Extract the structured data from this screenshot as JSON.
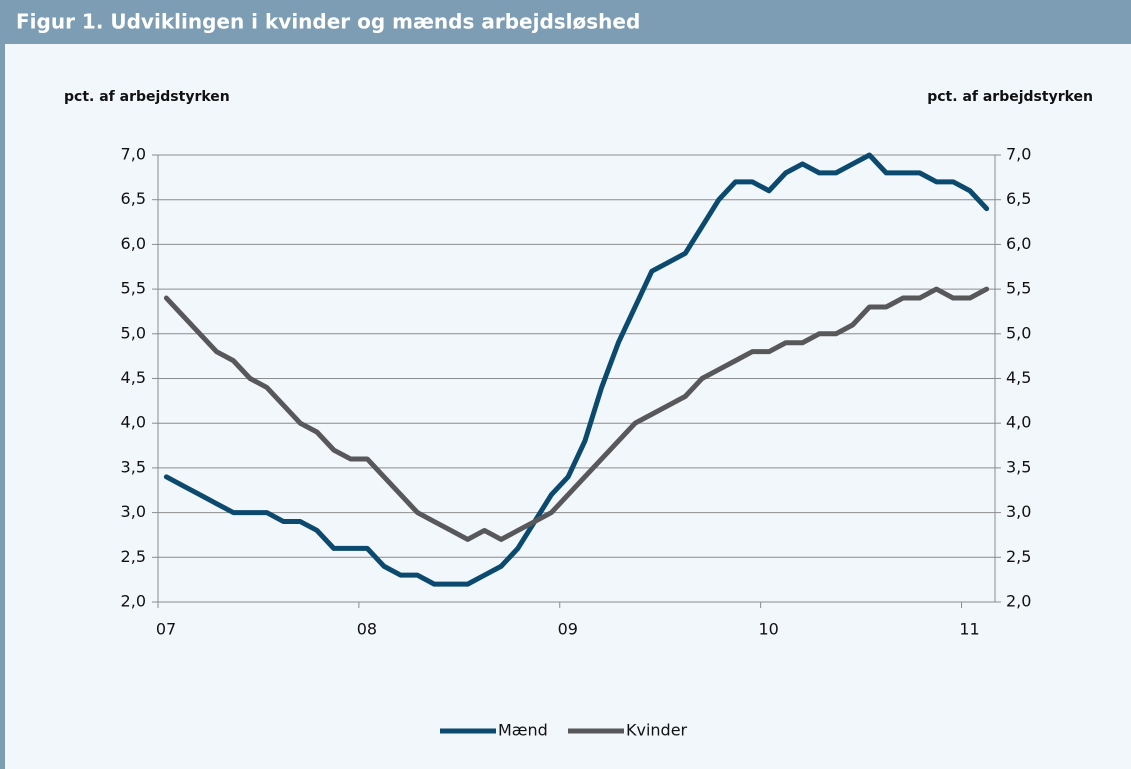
{
  "chart_data": {
    "type": "line",
    "title": "Figur 1. Udviklingen i kvinder og mænds arbejdsløshed",
    "ylabel": "pct. af arbejdstyrken",
    "y2label": "pct. af arbejdstyrken",
    "categories": [
      "07",
      null,
      null,
      null,
      null,
      null,
      null,
      null,
      null,
      null,
      null,
      null,
      "08",
      null,
      null,
      null,
      null,
      null,
      null,
      null,
      null,
      null,
      null,
      null,
      "09",
      null,
      null,
      null,
      null,
      null,
      null,
      null,
      null,
      null,
      null,
      null,
      "10",
      null,
      null,
      null,
      null,
      null,
      null,
      null,
      null,
      null,
      null,
      null,
      "11",
      null
    ],
    "series": [
      {
        "name": "Mænd",
        "color": "#0b4a6e",
        "values": [
          3.4,
          3.3,
          3.2,
          3.1,
          3.0,
          3.0,
          3.0,
          2.9,
          2.9,
          2.8,
          2.6,
          2.6,
          2.6,
          2.4,
          2.3,
          2.3,
          2.2,
          2.2,
          2.2,
          2.3,
          2.4,
          2.6,
          2.9,
          3.2,
          3.4,
          3.8,
          4.4,
          4.9,
          5.3,
          5.7,
          5.8,
          5.9,
          6.2,
          6.5,
          6.7,
          6.7,
          6.6,
          6.8,
          6.9,
          6.8,
          6.8,
          6.9,
          7.0,
          6.8,
          6.8,
          6.8,
          6.7,
          6.7,
          6.6,
          6.4
        ]
      },
      {
        "name": "Kvinder",
        "color": "#58585a",
        "values": [
          5.4,
          5.2,
          5.0,
          4.8,
          4.7,
          4.5,
          4.4,
          4.2,
          4.0,
          3.9,
          3.7,
          3.6,
          3.6,
          3.4,
          3.2,
          3.0,
          2.9,
          2.8,
          2.7,
          2.8,
          2.7,
          2.8,
          2.9,
          3.0,
          3.2,
          3.4,
          3.6,
          3.8,
          4.0,
          4.1,
          4.2,
          4.3,
          4.5,
          4.6,
          4.7,
          4.8,
          4.8,
          4.9,
          4.9,
          5.0,
          5.0,
          5.1,
          5.3,
          5.3,
          5.4,
          5.4,
          5.5,
          5.4,
          5.4,
          5.5
        ]
      }
    ],
    "ylim": [
      2,
      7
    ],
    "yticks": [
      {
        "value": 2,
        "label": "2,0"
      },
      {
        "value": 2.5,
        "label": "2,5"
      },
      {
        "value": 3,
        "label": "3,0"
      },
      {
        "value": 3.5,
        "label": "3,5"
      },
      {
        "value": 4,
        "label": "4,0"
      },
      {
        "value": 4.5,
        "label": "4,5"
      },
      {
        "value": 5,
        "label": "5,0"
      },
      {
        "value": 5.5,
        "label": "5,5"
      },
      {
        "value": 6,
        "label": "6,0"
      },
      {
        "value": 6.5,
        "label": "6,5"
      },
      {
        "value": 7,
        "label": "7,0"
      }
    ],
    "y2lim": [
      2,
      7
    ],
    "y2ticks": [
      {
        "value": 2,
        "label": "2,0"
      },
      {
        "value": 2.5,
        "label": "2,5"
      },
      {
        "value": 3,
        "label": "3,0"
      },
      {
        "value": 3.5,
        "label": "3,5"
      },
      {
        "value": 4,
        "label": "4,0"
      },
      {
        "value": 4.5,
        "label": "4,5"
      },
      {
        "value": 5,
        "label": "5,0"
      },
      {
        "value": 5.5,
        "label": "5,5"
      },
      {
        "value": 6,
        "label": "6,0"
      },
      {
        "value": 6.5,
        "label": "6,5"
      },
      {
        "value": 7,
        "label": "7,0"
      }
    ],
    "grid": true,
    "legend": "bottom"
  }
}
